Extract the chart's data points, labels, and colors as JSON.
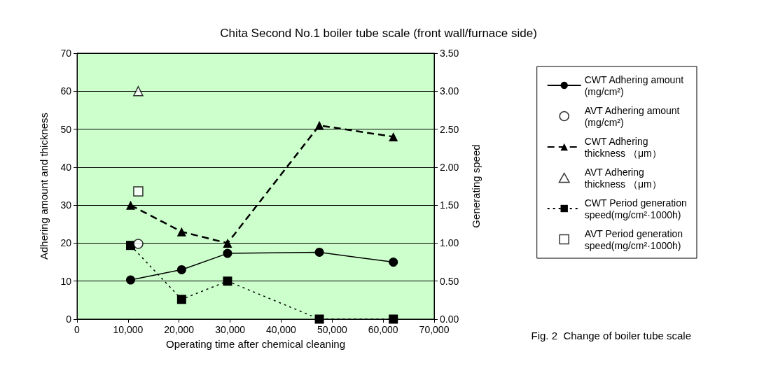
{
  "chart_data": {
    "type": "line",
    "title": "Chita Second No.1 boiler tube scale (front wall/furnace side)",
    "xlabel": "Operating time after chemical cleaning",
    "ylabel": "Adhering amount and thickness",
    "y2label": "Generating speed",
    "xlim": [
      0,
      70000
    ],
    "xticks": [
      0,
      {
        "value": 10000,
        "label": "10,000"
      },
      {
        "value": 20000,
        "label": "20,000"
      },
      {
        "value": 30000,
        "label": "30,000"
      },
      {
        "value": 40000,
        "label": "40,000"
      },
      {
        "value": 50000,
        "label": "50,000"
      },
      {
        "value": 60000,
        "label": "60,000"
      },
      {
        "value": 70000,
        "label": "70,000"
      }
    ],
    "ylim": [
      0,
      70
    ],
    "yticks": [
      0,
      10,
      20,
      30,
      40,
      50,
      60,
      70
    ],
    "y2lim": [
      0,
      3.5
    ],
    "y2ticks": [
      {
        "value": 0,
        "label": "0.00"
      },
      {
        "value": 0.5,
        "label": "0.50"
      },
      {
        "value": 1,
        "label": "1.00"
      },
      {
        "value": 1.5,
        "label": "1.50"
      },
      {
        "value": 2,
        "label": "2.00"
      },
      {
        "value": 2.5,
        "label": "2.50"
      },
      {
        "value": 3,
        "label": "3.00"
      },
      {
        "value": 3.5,
        "label": "3.50"
      }
    ],
    "grid": "y",
    "legend": "right",
    "annotations": [
      "Fig. 2  Change of boiler tube scale"
    ],
    "series": [
      {
        "name": "CWT Adhering amount (mg/cm²)",
        "color": "#000000",
        "marker": "circle",
        "line_style": "solid",
        "x": [
          10500,
          20500,
          29500,
          47500,
          62000
        ],
        "values": [
          10.3,
          13,
          17.3,
          17.6,
          15
        ]
      },
      {
        "name": "AVT Adhering amount (mg/cm²)",
        "color": "#ffffff",
        "type": "scatter",
        "marker": "circle",
        "x": [
          12000
        ],
        "values": [
          19.8
        ]
      },
      {
        "name": "CWT Adhering thickness （μm）",
        "color": "#000000",
        "marker": "triangle",
        "line_style": "dashed",
        "x": [
          10500,
          20500,
          29500,
          47500,
          62000
        ],
        "values": [
          30,
          23,
          20,
          51,
          48
        ]
      },
      {
        "name": "AVT Adhering thickness （μm）",
        "color": "#ffffff",
        "type": "scatter",
        "marker": "triangle",
        "x": [
          12000
        ],
        "values": [
          60
        ]
      },
      {
        "name": "CWT Period generation speed(mg/cm²·1000h)",
        "color": "#000000",
        "marker": "square",
        "line_style": "dotted",
        "axis": "y2",
        "x": [
          10500,
          20500,
          29500,
          47500,
          62000
        ],
        "values": [
          0.97,
          0.26,
          0.5,
          0,
          0
        ]
      },
      {
        "name": "AVT Period generation speed(mg/cm²·1000h)",
        "color": "#ffffff",
        "type": "scatter",
        "marker": "square",
        "axis": "y2",
        "x": [
          12000
        ],
        "values": [
          1.68
        ]
      }
    ]
  }
}
